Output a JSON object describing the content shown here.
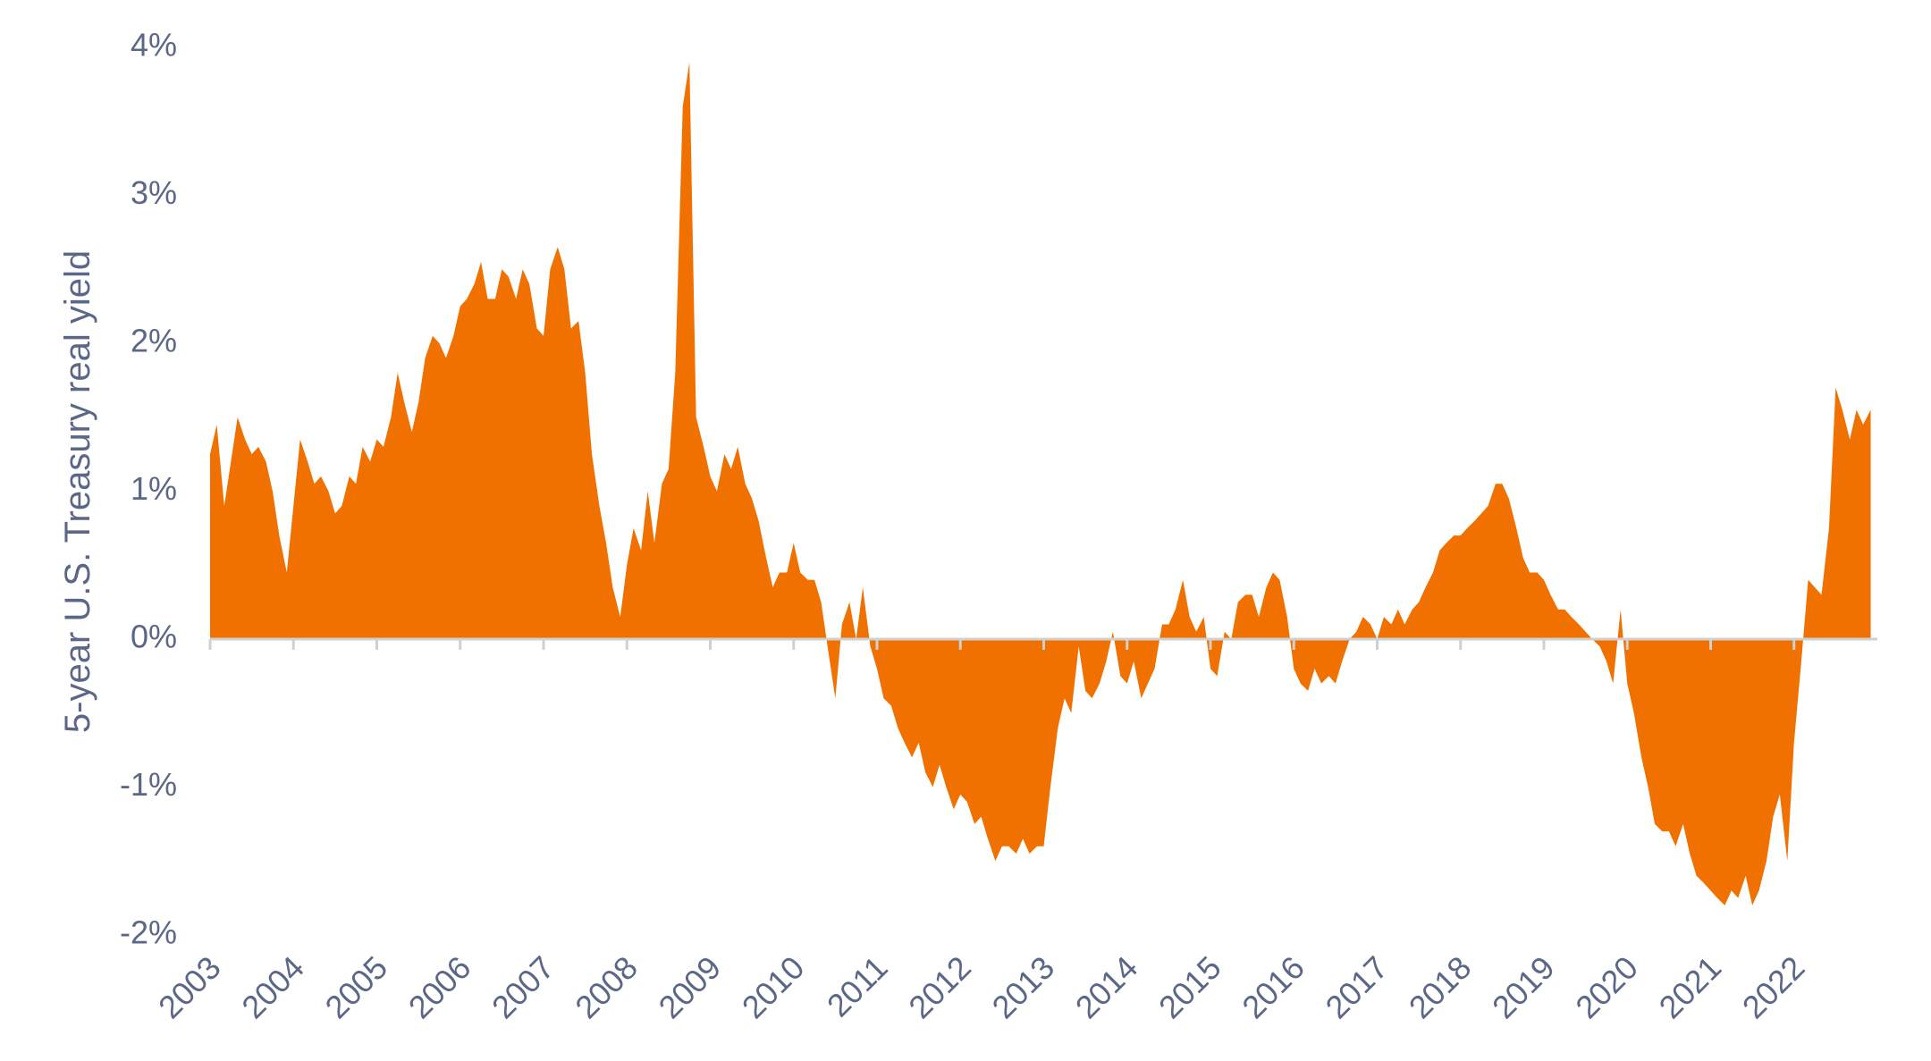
{
  "chart_data": {
    "type": "area",
    "y_label": "5-year U.S. Treasury real yield",
    "color": "#f07000",
    "xlim": [
      2003,
      2023
    ],
    "xticks": [
      2003,
      2004,
      2005,
      2006,
      2007,
      2008,
      2009,
      2010,
      2011,
      2012,
      2013,
      2014,
      2015,
      2016,
      2017,
      2018,
      2019,
      2020,
      2021,
      2022
    ],
    "ylim": [
      -2,
      4
    ],
    "yticks": [
      {
        "value": -2,
        "label": "-2%"
      },
      {
        "value": -1,
        "label": "-1%"
      },
      {
        "value": 0,
        "label": "0%"
      },
      {
        "value": 1,
        "label": "1%"
      },
      {
        "value": 2,
        "label": "2%"
      },
      {
        "value": 3,
        "label": "3%"
      },
      {
        "value": 4,
        "label": "4%"
      }
    ],
    "x": [
      2003,
      2003.08,
      2003.17,
      2003.25,
      2003.33,
      2003.42,
      2003.5,
      2003.58,
      2003.67,
      2003.75,
      2003.83,
      2003.92,
      2004,
      2004.08,
      2004.17,
      2004.25,
      2004.33,
      2004.42,
      2004.5,
      2004.58,
      2004.67,
      2004.75,
      2004.83,
      2004.92,
      2005,
      2005.08,
      2005.17,
      2005.25,
      2005.33,
      2005.42,
      2005.5,
      2005.58,
      2005.67,
      2005.75,
      2005.83,
      2005.92,
      2006,
      2006.08,
      2006.17,
      2006.25,
      2006.33,
      2006.42,
      2006.5,
      2006.58,
      2006.67,
      2006.75,
      2006.83,
      2006.92,
      2007,
      2007.08,
      2007.17,
      2007.25,
      2007.33,
      2007.42,
      2007.5,
      2007.58,
      2007.67,
      2007.75,
      2007.83,
      2007.92,
      2008,
      2008.08,
      2008.17,
      2008.25,
      2008.33,
      2008.42,
      2008.5,
      2008.58,
      2008.67,
      2008.75,
      2008.83,
      2008.92,
      2009,
      2009.08,
      2009.17,
      2009.25,
      2009.33,
      2009.42,
      2009.5,
      2009.58,
      2009.67,
      2009.75,
      2009.83,
      2009.92,
      2010,
      2010.08,
      2010.17,
      2010.25,
      2010.33,
      2010.42,
      2010.5,
      2010.58,
      2010.67,
      2010.75,
      2010.83,
      2010.92,
      2011,
      2011.08,
      2011.17,
      2011.25,
      2011.33,
      2011.42,
      2011.5,
      2011.58,
      2011.67,
      2011.75,
      2011.83,
      2011.92,
      2012,
      2012.08,
      2012.17,
      2012.25,
      2012.33,
      2012.42,
      2012.5,
      2012.58,
      2012.67,
      2012.75,
      2012.83,
      2012.92,
      2013,
      2013.08,
      2013.17,
      2013.25,
      2013.33,
      2013.42,
      2013.5,
      2013.58,
      2013.67,
      2013.75,
      2013.83,
      2013.92,
      2014,
      2014.08,
      2014.17,
      2014.25,
      2014.33,
      2014.42,
      2014.5,
      2014.58,
      2014.67,
      2014.75,
      2014.83,
      2014.92,
      2015,
      2015.08,
      2015.17,
      2015.25,
      2015.33,
      2015.42,
      2015.5,
      2015.58,
      2015.67,
      2015.75,
      2015.83,
      2015.92,
      2016,
      2016.08,
      2016.17,
      2016.25,
      2016.33,
      2016.42,
      2016.5,
      2016.58,
      2016.67,
      2016.75,
      2016.83,
      2016.92,
      2017,
      2017.08,
      2017.17,
      2017.25,
      2017.33,
      2017.42,
      2017.5,
      2017.58,
      2017.67,
      2017.75,
      2017.83,
      2017.92,
      2018,
      2018.08,
      2018.17,
      2018.25,
      2018.33,
      2018.42,
      2018.5,
      2018.58,
      2018.67,
      2018.75,
      2018.83,
      2018.92,
      2019,
      2019.08,
      2019.17,
      2019.25,
      2019.33,
      2019.42,
      2019.5,
      2019.58,
      2019.67,
      2019.75,
      2019.83,
      2019.92,
      2020,
      2020.08,
      2020.17,
      2020.25,
      2020.33,
      2020.42,
      2020.5,
      2020.58,
      2020.67,
      2020.75,
      2020.83,
      2020.92,
      2021,
      2021.08,
      2021.17,
      2021.25,
      2021.33,
      2021.42,
      2021.5,
      2021.58,
      2021.67,
      2021.75,
      2021.83,
      2021.92,
      2022,
      2022.08,
      2022.17,
      2022.25,
      2022.33,
      2022.42,
      2022.5,
      2022.58,
      2022.67,
      2022.75,
      2022.83,
      2022.92
    ],
    "values": [
      1.25,
      1.45,
      0.9,
      1.2,
      1.5,
      1.35,
      1.25,
      1.3,
      1.2,
      1.0,
      0.7,
      0.45,
      0.9,
      1.35,
      1.2,
      1.05,
      1.1,
      1.0,
      0.85,
      0.9,
      1.1,
      1.05,
      1.3,
      1.2,
      1.35,
      1.3,
      1.5,
      1.8,
      1.6,
      1.4,
      1.6,
      1.9,
      2.05,
      2.0,
      1.9,
      2.05,
      2.25,
      2.3,
      2.4,
      2.55,
      2.3,
      2.3,
      2.5,
      2.45,
      2.3,
      2.5,
      2.4,
      2.1,
      2.05,
      2.5,
      2.65,
      2.5,
      2.1,
      2.15,
      1.8,
      1.25,
      0.9,
      0.65,
      0.35,
      0.15,
      0.5,
      0.75,
      0.6,
      1.0,
      0.65,
      1.05,
      1.15,
      1.8,
      3.6,
      3.9,
      1.5,
      1.3,
      1.1,
      1.0,
      1.25,
      1.15,
      1.3,
      1.05,
      0.95,
      0.8,
      0.55,
      0.35,
      0.45,
      0.45,
      0.65,
      0.45,
      0.4,
      0.4,
      0.25,
      -0.1,
      -0.4,
      0.1,
      0.25,
      0.0,
      0.35,
      -0.05,
      -0.2,
      -0.4,
      -0.45,
      -0.6,
      -0.7,
      -0.8,
      -0.7,
      -0.9,
      -1.0,
      -0.85,
      -1.0,
      -1.15,
      -1.05,
      -1.1,
      -1.25,
      -1.2,
      -1.35,
      -1.5,
      -1.4,
      -1.4,
      -1.45,
      -1.35,
      -1.45,
      -1.4,
      -1.4,
      -1.0,
      -0.6,
      -0.4,
      -0.5,
      -0.05,
      -0.35,
      -0.4,
      -0.3,
      -0.15,
      0.05,
      -0.25,
      -0.3,
      -0.15,
      -0.4,
      -0.3,
      -0.2,
      0.1,
      0.1,
      0.2,
      0.4,
      0.15,
      0.05,
      0.15,
      -0.2,
      -0.25,
      0.05,
      0.0,
      0.25,
      0.3,
      0.3,
      0.15,
      0.35,
      0.45,
      0.4,
      0.15,
      -0.2,
      -0.3,
      -0.35,
      -0.2,
      -0.3,
      -0.25,
      -0.3,
      -0.15,
      0.0,
      0.05,
      0.15,
      0.1,
      0.0,
      0.15,
      0.1,
      0.2,
      0.1,
      0.2,
      0.25,
      0.35,
      0.45,
      0.6,
      0.65,
      0.7,
      0.7,
      0.75,
      0.8,
      0.85,
      0.9,
      1.05,
      1.05,
      0.95,
      0.75,
      0.55,
      0.45,
      0.45,
      0.4,
      0.3,
      0.2,
      0.2,
      0.15,
      0.1,
      0.05,
      0.0,
      -0.05,
      -0.15,
      -0.3,
      0.2,
      -0.3,
      -0.5,
      -0.8,
      -1.0,
      -1.25,
      -1.3,
      -1.3,
      -1.4,
      -1.25,
      -1.45,
      -1.6,
      -1.65,
      -1.7,
      -1.75,
      -1.8,
      -1.7,
      -1.75,
      -1.6,
      -1.8,
      -1.7,
      -1.5,
      -1.2,
      -1.05,
      -1.5,
      -0.7,
      -0.2,
      0.4,
      0.35,
      0.3,
      0.75,
      1.7,
      1.55,
      1.35,
      1.55,
      1.45,
      1.55
    ]
  }
}
